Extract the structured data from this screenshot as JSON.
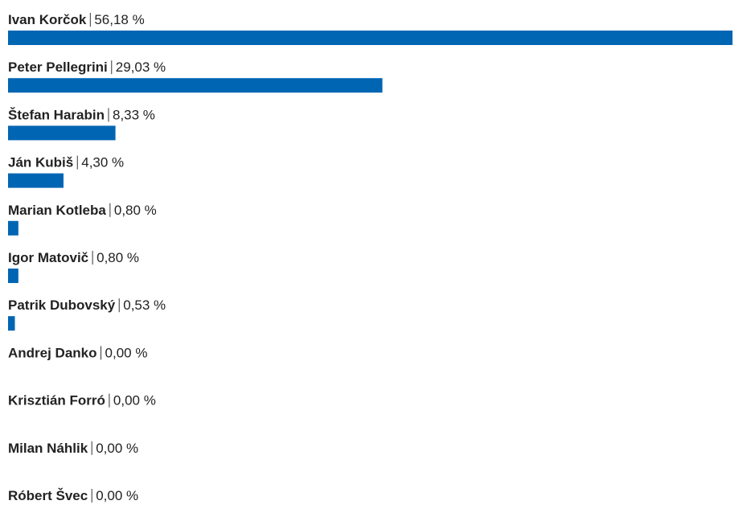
{
  "chart_data": {
    "type": "bar",
    "categories": [
      "Ivan Korčok",
      "Peter Pellegrini",
      "Štefan Harabin",
      "Ján Kubiš",
      "Marian Kotleba",
      "Igor Matovič",
      "Patrik Dubovský",
      "Andrej Danko",
      "Krisztián Forró",
      "Milan Náhlik",
      "Róbert Švec"
    ],
    "values": [
      56.18,
      29.03,
      8.33,
      4.3,
      0.8,
      0.8,
      0.53,
      0.0,
      0.0,
      0.0,
      0.0
    ],
    "value_labels": [
      "56,18 %",
      "29,03 %",
      "8,33 %",
      "4,30 %",
      "0,80 %",
      "0,80 %",
      "0,53 %",
      "0,00 %",
      "0,00 %",
      "0,00 %",
      "0,00 %"
    ],
    "color": "#0065b3"
  }
}
